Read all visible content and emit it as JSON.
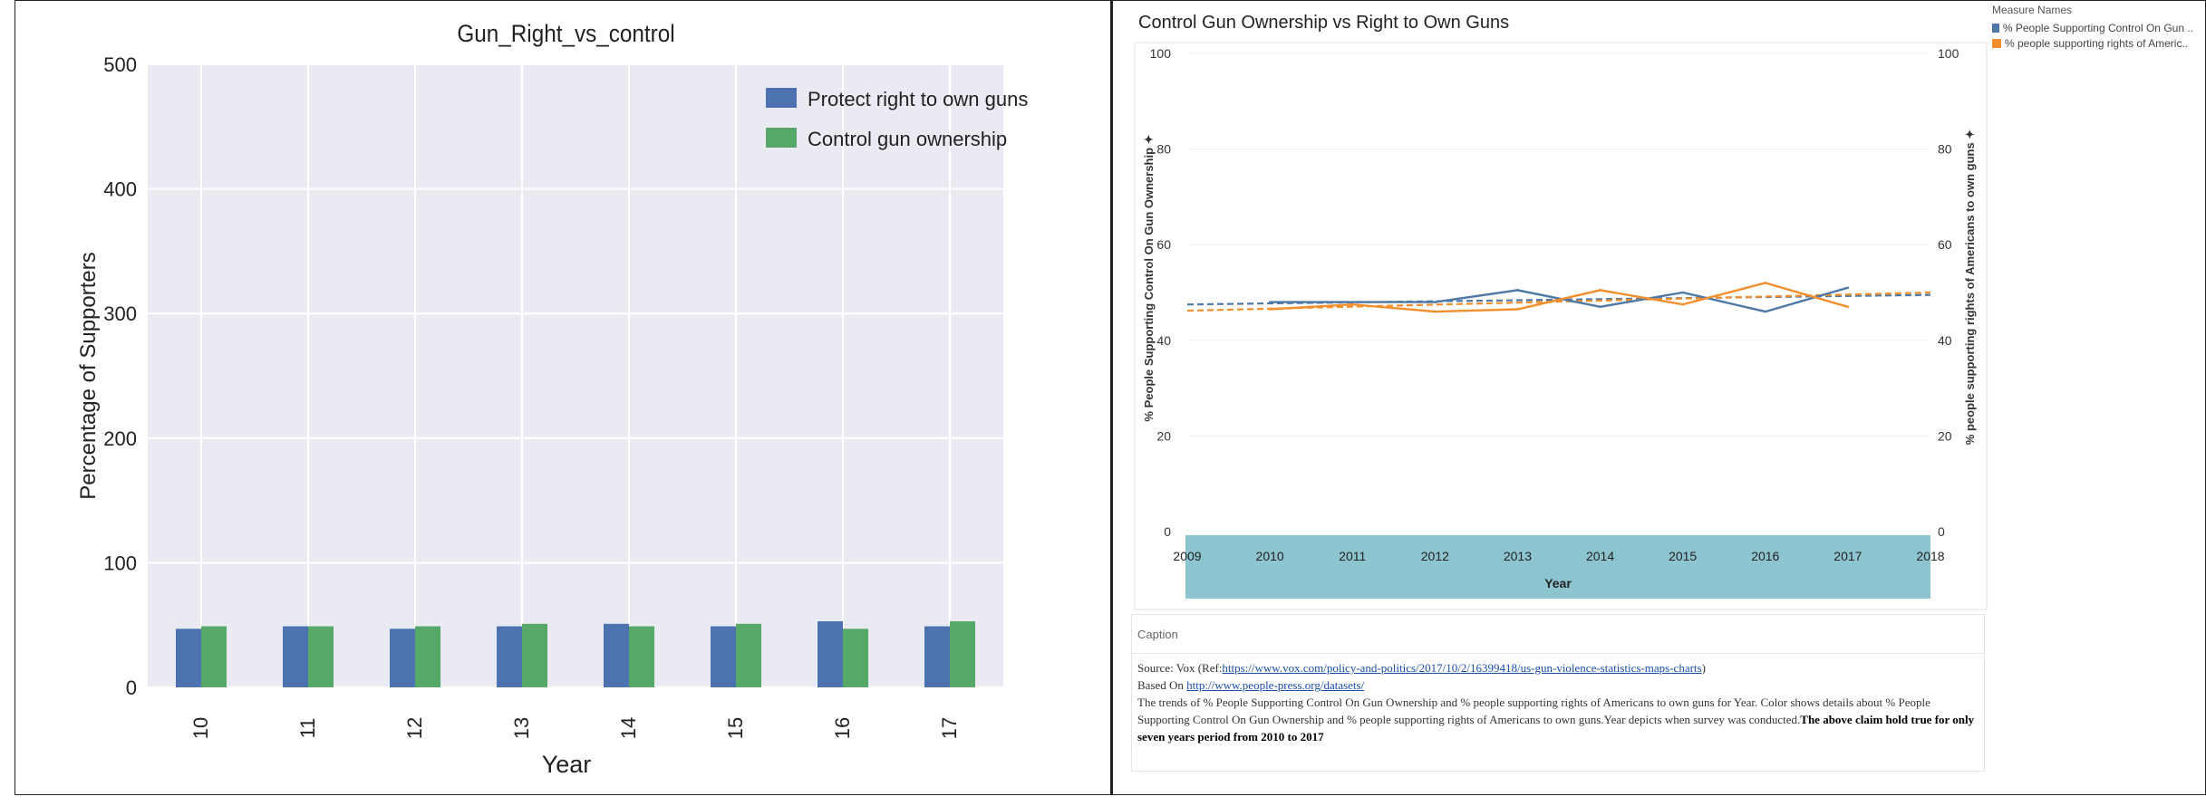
{
  "left_chart": {
    "title": "Gun_Right_vs_control",
    "xlabel": "Year",
    "ylabel": "Percentage of Supporters",
    "yticks": [
      "0",
      "100",
      "200",
      "300",
      "400",
      "500"
    ],
    "legend": [
      "Protect right to own guns",
      "Control gun ownership"
    ]
  },
  "right_chart": {
    "title": "Control Gun Ownership vs Right to Own Guns",
    "xlabel": "Year",
    "ylabel_left": "% People Supporting Control On Gun Ownership ✦",
    "ylabel_right": "% people supporting rights of Americans to own guns ✦",
    "yticks": [
      "0",
      "20",
      "40",
      "60",
      "80",
      "100"
    ],
    "xticks": [
      "2009",
      "2010",
      "2011",
      "2012",
      "2013",
      "2014",
      "2015",
      "2016",
      "2017",
      "2018"
    ]
  },
  "legend": {
    "title": "Measure Names",
    "items": [
      {
        "label": "% People Supporting Control On Gun ..",
        "color": "#4e79a7"
      },
      {
        "label": "% people supporting rights of Americ..",
        "color": "#f28e2b"
      }
    ]
  },
  "caption": {
    "heading": "Caption",
    "source_prefix": "Source: Vox (Ref:",
    "source_link": "https://www.vox.com/policy-and-politics/2017/10/2/16399418/us-gun-violence-statistics-maps-charts",
    "source_suffix": ")",
    "based_prefix": "Based On ",
    "based_link": "http://www.people-press.org/datasets/",
    "body": "The trends of % People Supporting Control On Gun Ownership and % people supporting rights of Americans to own guns for Year. Color shows details about % People Supporting Control On Gun Ownership and % people supporting rights of Americans to own guns.Year depicts when survey was conducted.",
    "claim": "The above claim hold true for only seven years period from 2010 to 2017"
  },
  "colors": {
    "bar_blue": "#4c72b0",
    "bar_green": "#55a868",
    "line_blue": "#4e79a7",
    "line_orange": "#f28e2b",
    "axis_band": "#8cc4cf"
  },
  "chart_data": [
    {
      "type": "bar",
      "title": "Gun_Right_vs_control",
      "xlabel": "Year",
      "ylabel": "Percentage of Supporters",
      "categories": [
        "10",
        "11",
        "12",
        "13",
        "14",
        "15",
        "16",
        "17"
      ],
      "ylim": [
        0,
        500
      ],
      "grid": true,
      "legend_position": "top-right",
      "series": [
        {
          "name": "Protect right to own guns",
          "values": [
            47,
            49,
            47,
            49,
            51,
            49,
            53,
            49
          ]
        },
        {
          "name": "Control gun ownership",
          "values": [
            49,
            49,
            49,
            51,
            49,
            51,
            47,
            53
          ]
        }
      ]
    },
    {
      "type": "line",
      "title": "Control Gun Ownership vs Right to Own Guns",
      "xlabel": "Year",
      "x": [
        2010,
        2011,
        2012,
        2013,
        2014,
        2015,
        2016,
        2017
      ],
      "xlim": [
        2009,
        2018
      ],
      "ylim": [
        0,
        100
      ],
      "legend_position": "top-right",
      "series": [
        {
          "name": "% People Supporting Control On Gun Ownership",
          "values": [
            48,
            48,
            48,
            50.5,
            47,
            50,
            46,
            51
          ]
        },
        {
          "name": "% people supporting rights of Americans to own guns",
          "values": [
            46.5,
            47.5,
            46,
            46.5,
            50.5,
            47.5,
            52,
            47
          ]
        }
      ],
      "trend_lines": [
        {
          "series": "% People Supporting Control On Gun Ownership",
          "start": [
            2009,
            47.5
          ],
          "end": [
            2018,
            49.5
          ]
        },
        {
          "series": "% people supporting rights of Americans to own guns",
          "start": [
            2009,
            46.2
          ],
          "end": [
            2018,
            50
          ]
        }
      ]
    }
  ]
}
